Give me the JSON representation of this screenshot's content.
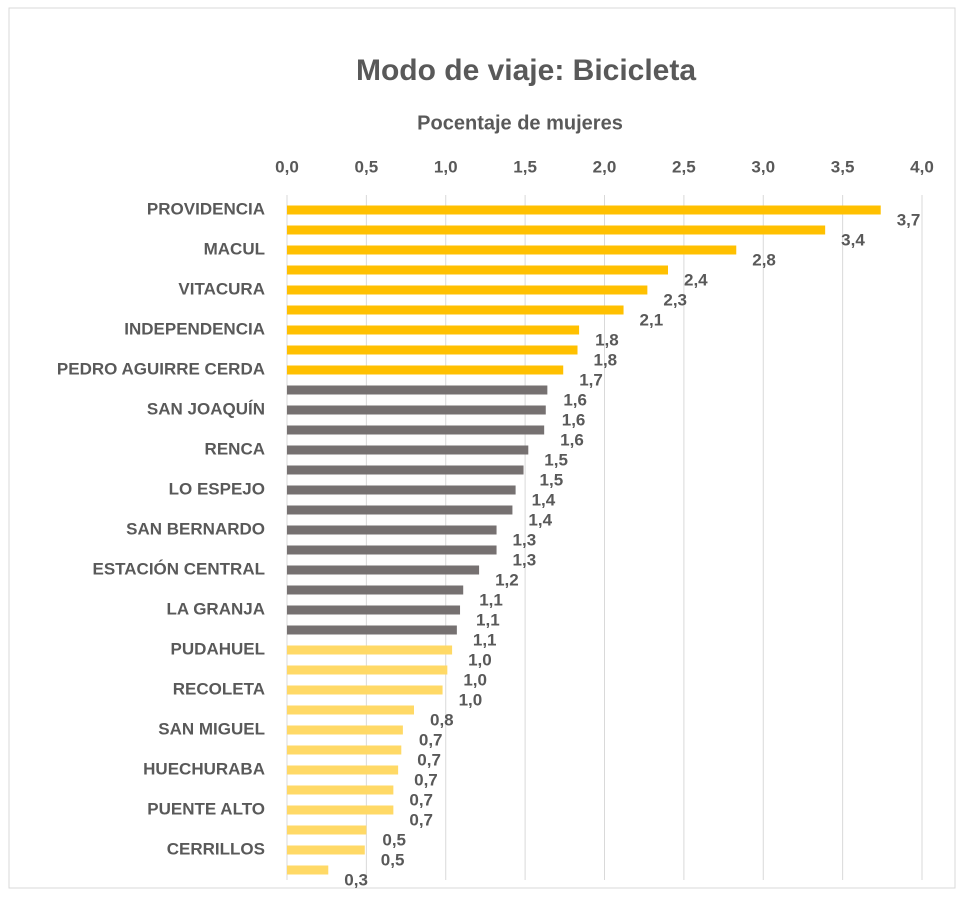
{
  "chart_data": {
    "type": "barh",
    "title": "Modo de viaje: Bicicleta",
    "subtitle": "Pocentaje de mujeres",
    "categories": [
      "PROVIDENCIA",
      null,
      "MACUL",
      null,
      "VITACURA",
      null,
      "INDEPENDENCIA",
      null,
      "PEDRO AGUIRRE CERDA",
      null,
      "SAN JOAQUÍN",
      null,
      "RENCA",
      null,
      "LO ESPEJO",
      null,
      "SAN BERNARDO",
      null,
      "ESTACIÓN CENTRAL",
      null,
      "LA GRANJA",
      null,
      "PUDAHUEL",
      null,
      "RECOLETA",
      null,
      "SAN MIGUEL",
      null,
      "HUECHURABA",
      null,
      "PUENTE ALTO",
      null,
      "CERRILLOS",
      null
    ],
    "values": [
      3.74,
      3.39,
      2.83,
      2.4,
      2.27,
      2.12,
      1.84,
      1.83,
      1.74,
      1.64,
      1.63,
      1.62,
      1.52,
      1.49,
      1.44,
      1.42,
      1.32,
      1.32,
      1.21,
      1.11,
      1.09,
      1.07,
      1.04,
      1.01,
      0.98,
      0.8,
      0.73,
      0.72,
      0.7,
      0.67,
      0.67,
      0.5,
      0.49,
      0.26
    ],
    "value_labels": [
      "3,7",
      "3,4",
      "2,8",
      "2,4",
      "2,3",
      "2,1",
      "1,8",
      "1,8",
      "1,7",
      "1,6",
      "1,6",
      "1,6",
      "1,5",
      "1,5",
      "1,4",
      "1,4",
      "1,3",
      "1,3",
      "1,2",
      "1,1",
      "1,1",
      "1,1",
      "1,0",
      "1,0",
      "1,0",
      "0,8",
      "0,7",
      "0,7",
      "0,7",
      "0,7",
      "0,7",
      "0,5",
      "0,5",
      "0,3"
    ],
    "colors": [
      "#ffc000",
      "#ffc000",
      "#ffc000",
      "#ffc000",
      "#ffc000",
      "#ffc000",
      "#ffc000",
      "#ffc000",
      "#ffc000",
      "#767171",
      "#767171",
      "#767171",
      "#767171",
      "#767171",
      "#767171",
      "#767171",
      "#767171",
      "#767171",
      "#767171",
      "#767171",
      "#767171",
      "#767171",
      "#ffd966",
      "#ffd966",
      "#ffd966",
      "#ffd966",
      "#ffd966",
      "#ffd966",
      "#ffd966",
      "#ffd966",
      "#ffd966",
      "#ffd966",
      "#ffd966",
      "#ffd966"
    ],
    "xlim": [
      0,
      4
    ],
    "xticks": [
      {
        "value": 0,
        "label": "0,0"
      },
      {
        "value": 0.5,
        "label": "0,5"
      },
      {
        "value": 1,
        "label": "1,0"
      },
      {
        "value": 1.5,
        "label": "1,5"
      },
      {
        "value": 2,
        "label": "2,0"
      },
      {
        "value": 2.5,
        "label": "2,5"
      },
      {
        "value": 3,
        "label": "3,0"
      },
      {
        "value": 3.5,
        "label": "3,5"
      },
      {
        "value": 4,
        "label": "4,0"
      }
    ],
    "grid": true
  }
}
